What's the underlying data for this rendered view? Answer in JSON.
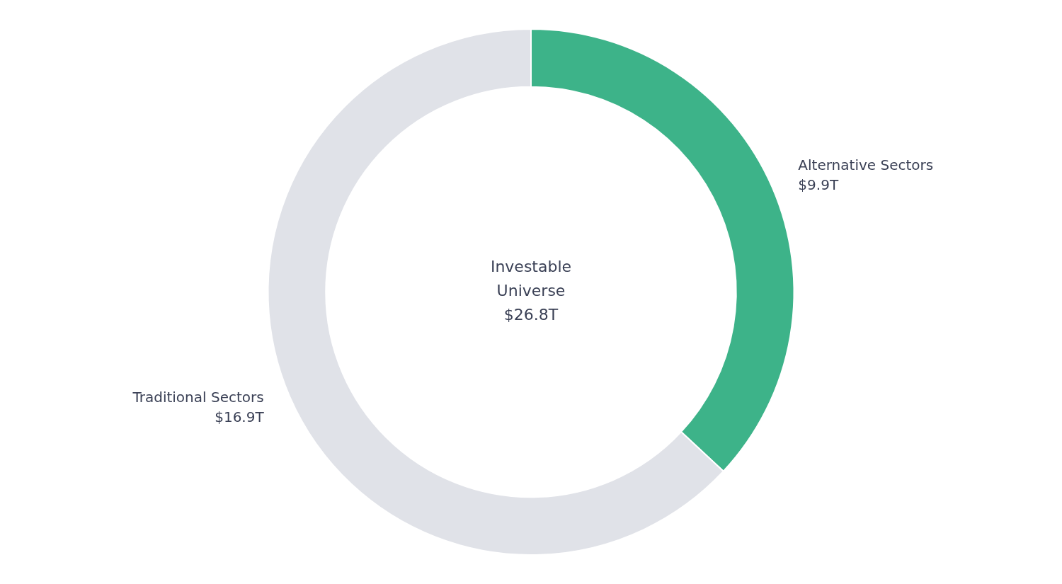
{
  "chart_data": {
    "type": "doughnut",
    "categories": [
      "Alternative Sectors",
      "Traditional Sectors"
    ],
    "values": [
      9.9,
      16.9
    ],
    "value_labels": [
      "$9.9T",
      "$16.9T"
    ],
    "colors": [
      "#3db389",
      "#e0e2e8"
    ],
    "annotations": [
      "Investable",
      "Universe",
      "$26.8T"
    ],
    "data_labels": true
  }
}
